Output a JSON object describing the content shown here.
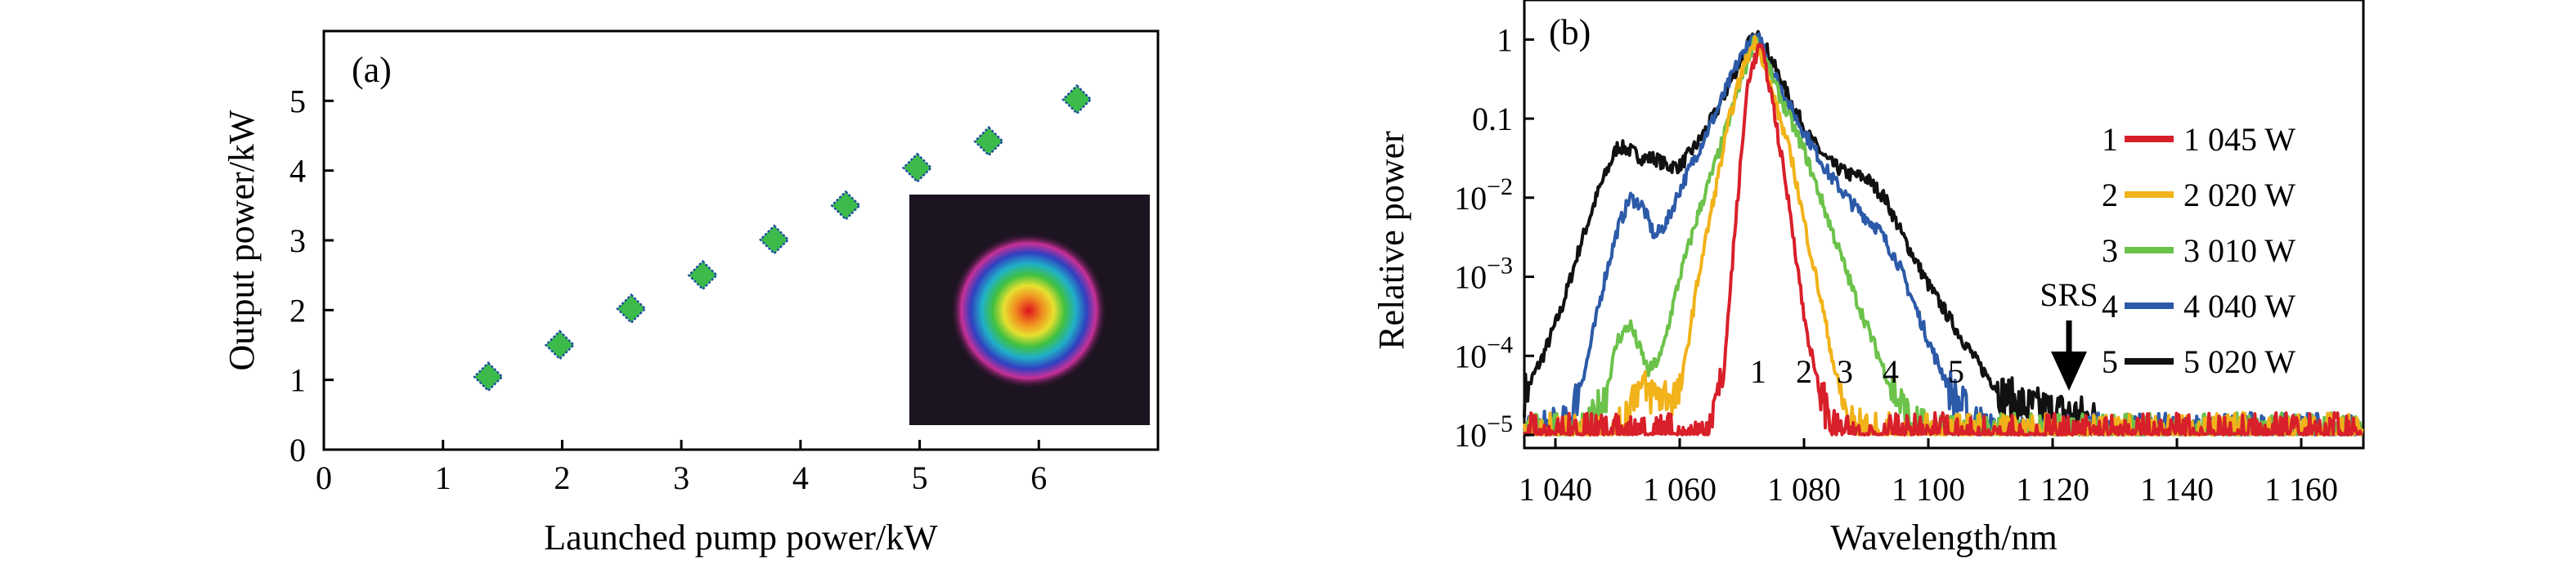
{
  "chart_data": [
    {
      "panel": "(a)",
      "type": "scatter",
      "xlabel": "Launched pump power/kW",
      "ylabel": "Output power/kW",
      "xlim": [
        0,
        7
      ],
      "ylim": [
        0,
        6
      ],
      "xticks": [
        "0",
        "1",
        "2",
        "3",
        "4",
        "5",
        "6"
      ],
      "yticks": [
        "0",
        "1",
        "2",
        "3",
        "4",
        "5"
      ],
      "series": [
        {
          "x": [
            1.38,
            1.98,
            2.58,
            3.18,
            3.78,
            4.38,
            4.98,
            5.58,
            6.32
          ],
          "y": [
            1.045,
            1.5,
            2.02,
            2.5,
            3.01,
            3.5,
            4.04,
            4.42,
            5.02
          ]
        }
      ],
      "marker_color": "#3dbb4a",
      "marker_edge": "#1f4fa0",
      "inset": "beam profile image"
    },
    {
      "panel": "(b)",
      "type": "line",
      "xlabel": "Wavelength/nm",
      "ylabel": "Relative power",
      "xlim": [
        1035,
        1170
      ],
      "ylim_log10": [
        -5,
        0.5
      ],
      "log_y": true,
      "xticks": [
        "1 040",
        "1 060",
        "1 080",
        "1 100",
        "1 120",
        "1 140",
        "1 160"
      ],
      "yticks": [
        {
          "base": "1",
          "exp": ""
        },
        {
          "base": "0.1",
          "exp": ""
        },
        {
          "base": "10",
          "exp": "−2"
        },
        {
          "base": "10",
          "exp": "−3"
        },
        {
          "base": "10",
          "exp": "−4"
        },
        {
          "base": "10",
          "exp": "−5"
        }
      ],
      "annotation_srs": "SRS",
      "curve_numbers": [
        "1",
        "2",
        "3",
        "4",
        "5"
      ],
      "series": [
        {
          "name": "1 045 W",
          "num": "1",
          "color": "#d8202a",
          "x": [
            1035,
            1060,
            1064,
            1067,
            1069,
            1071,
            1073,
            1075,
            1078,
            1080,
            1082,
            1085,
            1090,
            1170
          ],
          "y": [
            -5,
            -5,
            -5,
            -4.3,
            -2.3,
            -0.5,
            -0.05,
            -0.8,
            -2.3,
            -3.5,
            -4.3,
            -5,
            -5,
            -5
          ]
        },
        {
          "name": "2 020 W",
          "num": "2",
          "color": "#f1b21a",
          "x": [
            1035,
            1050,
            1053,
            1056,
            1060,
            1063,
            1066,
            1068,
            1070,
            1072,
            1073,
            1075,
            1078,
            1080,
            1083,
            1085,
            1087,
            1090,
            1170
          ],
          "y": [
            -5,
            -5,
            -4.4,
            -4.5,
            -4.5,
            -3.0,
            -1.8,
            -1.0,
            -0.4,
            -0.02,
            -0.15,
            -0.7,
            -1.5,
            -2.3,
            -3.4,
            -4.2,
            -4.8,
            -5,
            -5
          ]
        },
        {
          "name": "3 010 W",
          "num": "3",
          "color": "#6cc24a",
          "x": [
            1035,
            1045,
            1048,
            1050,
            1052,
            1055,
            1057,
            1060,
            1063,
            1066,
            1068,
            1070,
            1072,
            1073,
            1076,
            1080,
            1084,
            1088,
            1092,
            1094,
            1097,
            1100,
            1170
          ],
          "y": [
            -5,
            -5,
            -4.5,
            -3.8,
            -3.6,
            -4.2,
            -4.0,
            -3.0,
            -2.2,
            -1.5,
            -1.0,
            -0.5,
            -0.02,
            -0.1,
            -0.7,
            -1.4,
            -2.3,
            -3.2,
            -4.0,
            -4.4,
            -4.8,
            -5,
            -5
          ]
        },
        {
          "name": "4 040 W",
          "num": "4",
          "color": "#2c5aa8",
          "x": [
            1035,
            1042,
            1045,
            1048,
            1050,
            1052,
            1054,
            1056,
            1058,
            1060,
            1063,
            1066,
            1069,
            1071,
            1073,
            1075,
            1078,
            1081,
            1084,
            1088,
            1092,
            1095,
            1098,
            1101,
            1104,
            1107,
            1110,
            1170
          ],
          "y": [
            -5,
            -4.9,
            -4.1,
            -3.0,
            -2.4,
            -2.0,
            -2.1,
            -2.5,
            -2.3,
            -1.9,
            -1.4,
            -0.9,
            -0.35,
            -0.05,
            0,
            -0.4,
            -0.9,
            -1.3,
            -1.7,
            -2.1,
            -2.4,
            -2.8,
            -3.4,
            -4.0,
            -4.5,
            -4.8,
            -5,
            -5
          ]
        },
        {
          "name": "5 020 W",
          "num": "5",
          "color": "#111111",
          "x": [
            1035,
            1038,
            1041,
            1044,
            1047,
            1050,
            1052,
            1054,
            1056,
            1058,
            1060,
            1063,
            1066,
            1069,
            1071,
            1073,
            1075,
            1078,
            1081,
            1084,
            1087,
            1090,
            1093,
            1096,
            1100,
            1104,
            1108,
            1112,
            1116,
            1120,
            1124,
            1128,
            1130
          ],
          "y": [
            -4.5,
            -4.0,
            -3.4,
            -2.6,
            -1.9,
            -1.35,
            -1.4,
            -1.5,
            -1.5,
            -1.6,
            -1.6,
            -1.3,
            -0.9,
            -0.4,
            -0.05,
            0.05,
            -0.3,
            -0.8,
            -1.25,
            -1.55,
            -1.7,
            -1.75,
            -2.0,
            -2.5,
            -3.1,
            -3.6,
            -4.1,
            -4.5,
            -4.65,
            -4.7,
            -4.75,
            -4.85,
            -5
          ]
        }
      ]
    }
  ]
}
